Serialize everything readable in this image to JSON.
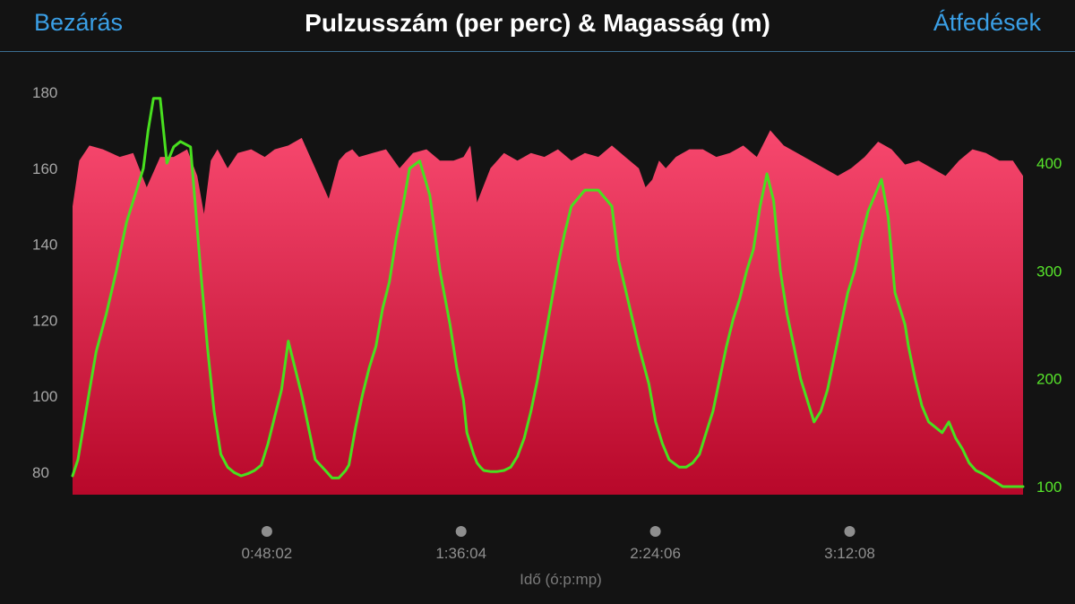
{
  "header": {
    "close_label": "Bezárás",
    "title": "Pulzusszám (per perc) & Magasság (m)",
    "overlays_label": "Átfedések"
  },
  "colors": {
    "background": "#131313",
    "accent": "#3a9fe6",
    "heart_rate_fill_top": "#f7486e",
    "heart_rate_fill_bottom": "#b8082a",
    "elevation_line": "#48e01f"
  },
  "chart_data": {
    "type": "area",
    "title": "Pulzusszám (per perc) & Magasság (m)",
    "xlabel": "Idő (ó:p:mp)",
    "x_ticks": [
      "0:48:02",
      "1:36:04",
      "2:24:06",
      "3:12:08"
    ],
    "x_tick_seconds": [
      2882,
      5764,
      8646,
      11528
    ],
    "xlim_seconds": [
      0,
      14100
    ],
    "left_axis": {
      "ticks": [
        "180",
        "160",
        "140",
        "120",
        "100",
        "80"
      ],
      "ylim": [
        75,
        183
      ]
    },
    "right_axis": {
      "ticks": [
        "400",
        "300",
        "200",
        "100"
      ],
      "ylim": [
        100,
        515
      ]
    },
    "grid": false,
    "series": [
      {
        "axis": "left",
        "t": [
          0,
          100,
          250,
          450,
          700,
          900,
          1100,
          1300,
          1500,
          1700,
          1850,
          1950,
          2050,
          2150,
          2300,
          2450,
          2650,
          2850,
          3000,
          3200,
          3400,
          3600,
          3800,
          3950,
          4050,
          4150,
          4250,
          4450,
          4650,
          4850,
          5050,
          5250,
          5450,
          5650,
          5800,
          5900,
          6000,
          6200,
          6400,
          6600,
          6800,
          7000,
          7200,
          7400,
          7600,
          7800,
          8000,
          8200,
          8400,
          8500,
          8600,
          8700,
          8800,
          8950,
          9150,
          9350,
          9550,
          9750,
          9950,
          10150,
          10350,
          10550,
          10750,
          10950,
          11150,
          11350,
          11550,
          11750,
          11950,
          12150,
          12350,
          12550,
          12750,
          12950,
          13150,
          13350,
          13550,
          13750,
          13950,
          14100
        ],
        "values": [
          150,
          162,
          166,
          165,
          163,
          164,
          155,
          163,
          163,
          165,
          158,
          148,
          162,
          165,
          160,
          164,
          165,
          163,
          165,
          166,
          168,
          160,
          152,
          162,
          164,
          165,
          163,
          164,
          165,
          160,
          164,
          165,
          162,
          162,
          163,
          166,
          151,
          160,
          164,
          162,
          164,
          163,
          165,
          162,
          164,
          163,
          166,
          163,
          160,
          155,
          157,
          162,
          160,
          163,
          165,
          165,
          163,
          164,
          166,
          163,
          170,
          166,
          164,
          162,
          160,
          158,
          160,
          163,
          167,
          165,
          161,
          162,
          160,
          158,
          162,
          165,
          164,
          162,
          162,
          158
        ]
      },
      {
        "axis": "right",
        "t": [
          0,
          80,
          200,
          350,
          500,
          650,
          800,
          950,
          1050,
          1120,
          1200,
          1300,
          1400,
          1500,
          1600,
          1750,
          1900,
          2000,
          2100,
          2200,
          2300,
          2400,
          2500,
          2600,
          2700,
          2800,
          2900,
          3000,
          3100,
          3200,
          3400,
          3600,
          3750,
          3850,
          3950,
          4050,
          4100,
          4200,
          4300,
          4400,
          4500,
          4600,
          4700,
          4800,
          4900,
          5000,
          5150,
          5300,
          5450,
          5600,
          5700,
          5800,
          5850,
          5900,
          5950,
          6000,
          6050,
          6100,
          6200,
          6300,
          6400,
          6500,
          6600,
          6700,
          6800,
          6900,
          7000,
          7100,
          7200,
          7300,
          7400,
          7600,
          7800,
          8000,
          8100,
          8250,
          8400,
          8550,
          8650,
          8750,
          8850,
          9000,
          9100,
          9200,
          9300,
          9400,
          9500,
          9600,
          9700,
          9800,
          9900,
          10000,
          10100,
          10200,
          10300,
          10400,
          10500,
          10600,
          10700,
          10800,
          10900,
          11000,
          11100,
          11200,
          11300,
          11400,
          11500,
          11600,
          11700,
          11800,
          11900,
          12000,
          12100,
          12200,
          12300,
          12350,
          12400,
          12500,
          12600,
          12700,
          12800,
          12900,
          13000,
          13100,
          13200,
          13300,
          13400,
          13500,
          13600,
          13700,
          13800,
          13900,
          14000,
          14100
        ],
        "values": [
          110,
          125,
          170,
          225,
          260,
          300,
          345,
          375,
          395,
          430,
          460,
          460,
          400,
          415,
          420,
          415,
          300,
          230,
          170,
          130,
          118,
          113,
          110,
          112,
          115,
          120,
          140,
          165,
          190,
          235,
          185,
          125,
          115,
          108,
          108,
          115,
          120,
          155,
          185,
          210,
          230,
          265,
          290,
          330,
          360,
          395,
          402,
          370,
          300,
          250,
          210,
          180,
          150,
          140,
          130,
          122,
          118,
          115,
          114,
          114,
          115,
          118,
          128,
          145,
          170,
          200,
          235,
          270,
          305,
          335,
          360,
          375,
          375,
          360,
          310,
          270,
          230,
          195,
          160,
          140,
          125,
          118,
          118,
          122,
          130,
          150,
          170,
          200,
          230,
          255,
          275,
          300,
          320,
          360,
          390,
          365,
          300,
          260,
          230,
          200,
          180,
          160,
          170,
          190,
          220,
          250,
          280,
          300,
          330,
          355,
          370,
          385,
          350,
          280,
          260,
          250,
          230,
          200,
          175,
          160,
          155,
          150,
          160,
          145,
          135,
          122,
          115,
          112,
          108,
          104,
          100,
          100,
          100,
          100
        ]
      }
    ]
  }
}
